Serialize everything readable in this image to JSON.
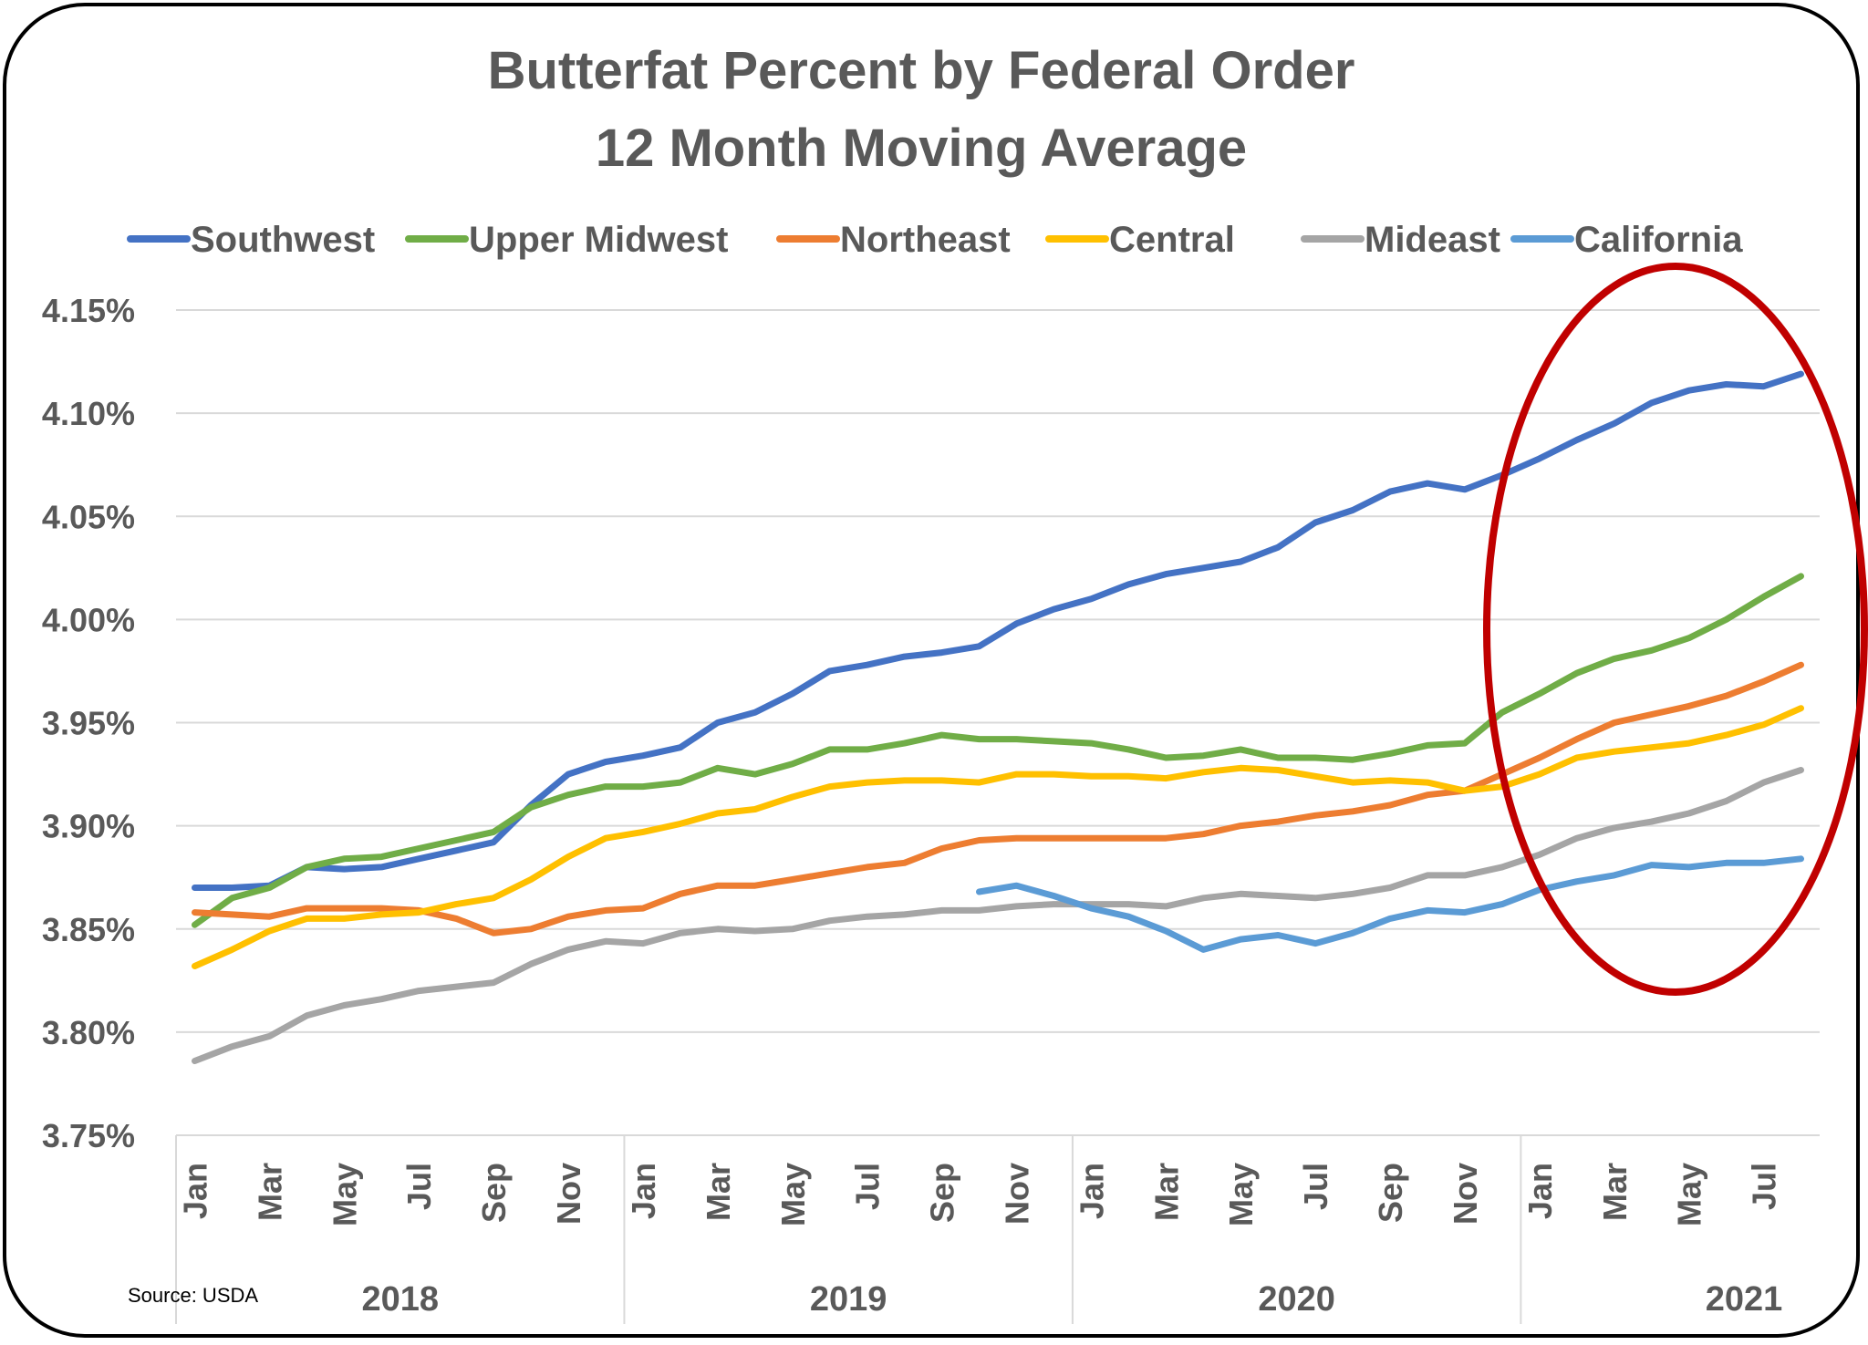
{
  "chart_data": {
    "type": "line",
    "title": "Butterfat Percent by Federal Order",
    "subtitle": "12 Month Moving Average",
    "ylabel": "",
    "xlabel": "",
    "ylim": [
      3.75,
      4.15
    ],
    "y_ticks": [
      "4.15%",
      "4.10%",
      "4.05%",
      "4.00%",
      "3.95%",
      "3.90%",
      "3.85%",
      "3.80%",
      "3.75%"
    ],
    "month_labels": [
      "Jan",
      "",
      "Mar",
      "",
      "May",
      "",
      "Jul",
      "",
      "Sep",
      "",
      "Nov",
      "",
      "Jan",
      "",
      "Mar",
      "",
      "May",
      "",
      "Jul",
      "",
      "Sep",
      "",
      "Nov",
      "",
      "Jan",
      "",
      "Mar",
      "",
      "May",
      "",
      "Jul",
      "",
      "Sep",
      "",
      "Nov",
      "",
      "Jan",
      "",
      "Mar",
      "",
      "May",
      "",
      "Jul",
      ""
    ],
    "years": [
      "2018",
      "2019",
      "2020",
      "2021"
    ],
    "grid": true,
    "legend_position": "top",
    "source": "Source: USDA",
    "annotation": "red ellipse highlighting 2021",
    "series": [
      {
        "name": "Southwest",
        "color": "#4472C4",
        "start": 0,
        "values": [
          3.87,
          3.87,
          3.871,
          3.88,
          3.879,
          3.88,
          3.884,
          3.888,
          3.892,
          3.91,
          3.925,
          3.931,
          3.934,
          3.938,
          3.95,
          3.955,
          3.964,
          3.975,
          3.978,
          3.982,
          3.984,
          3.987,
          3.998,
          4.005,
          4.01,
          4.017,
          4.022,
          4.025,
          4.028,
          4.035,
          4.047,
          4.053,
          4.062,
          4.066,
          4.063,
          4.07,
          4.078,
          4.087,
          4.095,
          4.105,
          4.111,
          4.114,
          4.113,
          4.119
        ]
      },
      {
        "name": "Upper Midwest",
        "color": "#70AD47",
        "start": 0,
        "values": [
          3.852,
          3.865,
          3.87,
          3.88,
          3.884,
          3.885,
          3.889,
          3.893,
          3.897,
          3.909,
          3.915,
          3.919,
          3.919,
          3.921,
          3.928,
          3.925,
          3.93,
          3.937,
          3.937,
          3.94,
          3.944,
          3.942,
          3.942,
          3.941,
          3.94,
          3.937,
          3.933,
          3.934,
          3.937,
          3.933,
          3.933,
          3.932,
          3.935,
          3.939,
          3.94,
          3.955,
          3.964,
          3.974,
          3.981,
          3.985,
          3.991,
          4.0,
          4.011,
          4.021
        ]
      },
      {
        "name": "Northeast",
        "color": "#ED7D31",
        "start": 0,
        "values": [
          3.858,
          3.857,
          3.856,
          3.86,
          3.86,
          3.86,
          3.859,
          3.855,
          3.848,
          3.85,
          3.856,
          3.859,
          3.86,
          3.867,
          3.871,
          3.871,
          3.874,
          3.877,
          3.88,
          3.882,
          3.889,
          3.893,
          3.894,
          3.894,
          3.894,
          3.894,
          3.894,
          3.896,
          3.9,
          3.902,
          3.905,
          3.907,
          3.91,
          3.915,
          3.917,
          3.925,
          3.933,
          3.942,
          3.95,
          3.954,
          3.958,
          3.963,
          3.97,
          3.978
        ]
      },
      {
        "name": "Central",
        "color": "#FFC000",
        "start": 0,
        "values": [
          3.832,
          3.84,
          3.849,
          3.855,
          3.855,
          3.857,
          3.858,
          3.862,
          3.865,
          3.874,
          3.885,
          3.894,
          3.897,
          3.901,
          3.906,
          3.908,
          3.914,
          3.919,
          3.921,
          3.922,
          3.922,
          3.921,
          3.925,
          3.925,
          3.924,
          3.924,
          3.923,
          3.926,
          3.928,
          3.927,
          3.924,
          3.921,
          3.922,
          3.921,
          3.917,
          3.919,
          3.925,
          3.933,
          3.936,
          3.938,
          3.94,
          3.944,
          3.949,
          3.957
        ]
      },
      {
        "name": "Mideast",
        "color": "#A5A5A5",
        "start": 0,
        "values": [
          3.786,
          3.793,
          3.798,
          3.808,
          3.813,
          3.816,
          3.82,
          3.822,
          3.824,
          3.833,
          3.84,
          3.844,
          3.843,
          3.848,
          3.85,
          3.849,
          3.85,
          3.854,
          3.856,
          3.857,
          3.859,
          3.859,
          3.861,
          3.862,
          3.862,
          3.862,
          3.861,
          3.865,
          3.867,
          3.866,
          3.865,
          3.867,
          3.87,
          3.876,
          3.876,
          3.88,
          3.886,
          3.894,
          3.899,
          3.902,
          3.906,
          3.912,
          3.921,
          3.927
        ]
      },
      {
        "name": "California",
        "color": "#5B9BD5",
        "start": 21,
        "values": [
          3.868,
          3.871,
          3.866,
          3.86,
          3.856,
          3.849,
          3.84,
          3.845,
          3.847,
          3.843,
          3.848,
          3.855,
          3.859,
          3.858,
          3.862,
          3.869,
          3.873,
          3.876,
          3.881,
          3.88,
          3.882,
          3.882,
          3.884
        ]
      }
    ]
  }
}
